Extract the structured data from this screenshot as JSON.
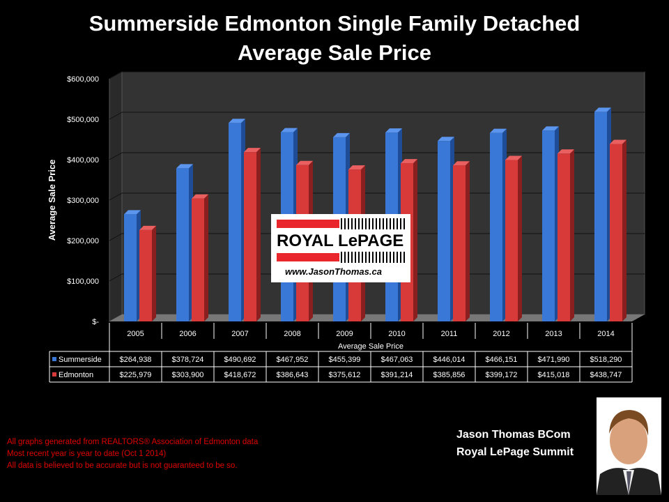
{
  "chart_data": {
    "type": "bar",
    "title": "Summerside Edmonton Single Family Detached",
    "subtitle": "Average Sale Price",
    "ylabel": "Average Sale Price",
    "xlabel": "Average Sale Price",
    "ylim": [
      0,
      600000
    ],
    "yticks": [
      "$-",
      "$100,000",
      "$200,000",
      "$300,000",
      "$400,000",
      "$500,000",
      "$600,000"
    ],
    "grid": true,
    "categories": [
      "2005",
      "2006",
      "2007",
      "2008",
      "2009",
      "2010",
      "2011",
      "2012",
      "2013",
      "2014"
    ],
    "series": [
      {
        "name": "Summerside",
        "color": "#3a78d8",
        "values": [
          264938,
          378724,
          490692,
          467952,
          455399,
          467063,
          446014,
          466151,
          471990,
          518290
        ],
        "labels": [
          "$264,938",
          "$378,724",
          "$490,692",
          "$467,952",
          "$455,399",
          "$467,063",
          "$446,014",
          "$466,151",
          "$471,990",
          "$518,290"
        ]
      },
      {
        "name": "Edmonton",
        "color": "#d83a3a",
        "values": [
          225979,
          303900,
          418672,
          386643,
          375612,
          391214,
          385856,
          399172,
          415018,
          438747
        ],
        "labels": [
          "$225,979",
          "$303,900",
          "$418,672",
          "$386,643",
          "$375,612",
          "$391,214",
          "$385,856",
          "$399,172",
          "$415,018",
          "$438,747"
        ]
      }
    ],
    "legend": "data-table"
  },
  "logo": {
    "brand": "ROYAL LePAGE",
    "url": "www.JasonThomas.ca"
  },
  "notes": [
    "All graphs generated from REALTORS® Association of Edmonton data",
    "Most recent year is year to date (Oct 1 2014)",
    "All data is believed to be accurate but is not guaranteed to be so."
  ],
  "agent": {
    "name": "Jason Thomas BCom",
    "company": "Royal LePage Summit"
  }
}
